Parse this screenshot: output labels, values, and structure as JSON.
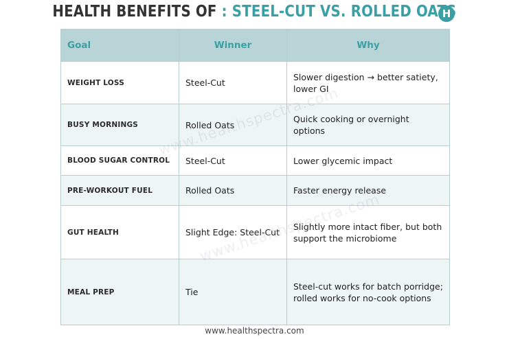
{
  "title": {
    "part1": "HEALTH BENEFITS OF",
    "part2": " : STEEL-CUT VS. ROLLED OATS"
  },
  "logo": {
    "letter": "H",
    "color": "#3aa0a5"
  },
  "table": {
    "headers": {
      "goal": "Goal",
      "winner": "Winner",
      "why": "Why"
    },
    "rows": [
      {
        "goal": "WEIGHT LOSS",
        "winner": "Steel-Cut",
        "why": "Slower digestion → better satiety, lower GI"
      },
      {
        "goal": "BUSY MORNINGS",
        "winner": "Rolled Oats",
        "why": "Quick cooking or overnight options"
      },
      {
        "goal": "BLOOD SUGAR CONTROL",
        "winner": "Steel-Cut",
        "why": "Lower glycemic impact"
      },
      {
        "goal": "PRE-WORKOUT FUEL",
        "winner": "Rolled Oats",
        "why": "Faster energy release"
      },
      {
        "goal": "GUT HEALTH",
        "winner": "Slight Edge: Steel-Cut",
        "why": "Slightly more intact fiber, but both support the microbiome"
      },
      {
        "goal": "MEAL PREP",
        "winner": "Tie",
        "why": "Steel-cut works for batch porridge; rolled works for no-cook options"
      }
    ]
  },
  "watermark": "www.healthspectra.com",
  "footer": "www.healthspectra.com",
  "colors": {
    "accent": "#3aa0a5",
    "header_bg": "#b9d4d7",
    "alt_row": "#eef5f5"
  }
}
